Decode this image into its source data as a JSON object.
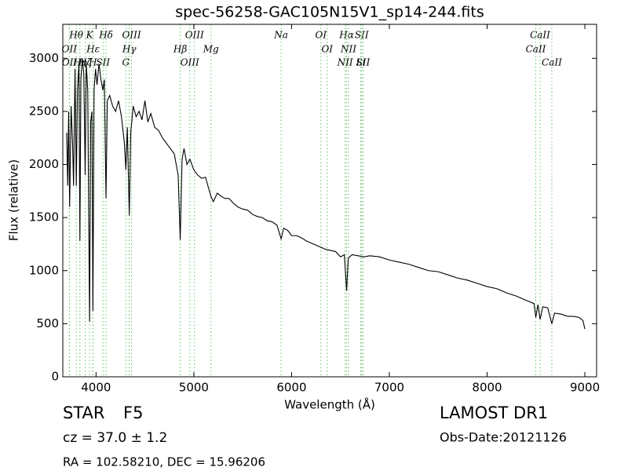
{
  "chart_data": {
    "type": "line",
    "title": "spec-56258-GAC105N15V1_sp14-244.fits",
    "x_label": "Wavelength (Å)",
    "y_label": "Flux (relative)",
    "xlim": [
      3660,
      9120
    ],
    "ylim": [
      0,
      3320
    ],
    "xticks": [
      4000,
      5000,
      6000,
      7000,
      8000,
      9000
    ],
    "yticks": [
      0,
      500,
      1000,
      1500,
      2000,
      2500,
      3000
    ],
    "grid": false,
    "x": [
      3700,
      3710,
      3720,
      3730,
      3745,
      3760,
      3770,
      3785,
      3798,
      3810,
      3825,
      3835,
      3845,
      3860,
      3875,
      3889,
      3900,
      3915,
      3925,
      3934,
      3945,
      3958,
      3968,
      3980,
      3995,
      4010,
      4030,
      4050,
      4070,
      4085,
      4102,
      4115,
      4140,
      4170,
      4200,
      4230,
      4260,
      4290,
      4305,
      4320,
      4340,
      4355,
      4380,
      4410,
      4440,
      4470,
      4500,
      4530,
      4560,
      4600,
      4640,
      4680,
      4720,
      4760,
      4800,
      4840,
      4861,
      4880,
      4900,
      4930,
      4960,
      5000,
      5040,
      5080,
      5120,
      5150,
      5175,
      5200,
      5240,
      5280,
      5320,
      5360,
      5400,
      5450,
      5500,
      5550,
      5600,
      5650,
      5700,
      5750,
      5800,
      5850,
      5893,
      5920,
      5960,
      6000,
      6050,
      6100,
      6150,
      6200,
      6250,
      6300,
      6350,
      6400,
      6450,
      6500,
      6540,
      6563,
      6580,
      6620,
      6680,
      6740,
      6800,
      6900,
      7000,
      7100,
      7200,
      7300,
      7400,
      7500,
      7600,
      7700,
      7800,
      7900,
      8000,
      8100,
      8200,
      8300,
      8400,
      8480,
      8498,
      8520,
      8542,
      8570,
      8620,
      8662,
      8690,
      8760,
      8820,
      8880,
      8940,
      8980,
      9000
    ],
    "series": [
      {
        "color": "#000000",
        "values": [
          2300,
          1800,
          2500,
          1600,
          2550,
          2200,
          1800,
          2900,
          1800,
          2700,
          2950,
          1280,
          2800,
          3000,
          2850,
          1900,
          2950,
          2700,
          1500,
          520,
          2400,
          2500,
          620,
          2700,
          2900,
          2750,
          2950,
          2800,
          2700,
          2800,
          1680,
          2600,
          2650,
          2550,
          2500,
          2600,
          2450,
          2200,
          1950,
          2350,
          1520,
          2300,
          2550,
          2450,
          2500,
          2420,
          2600,
          2400,
          2480,
          2350,
          2320,
          2250,
          2200,
          2150,
          2100,
          1900,
          1290,
          2050,
          2150,
          2000,
          2050,
          1950,
          1900,
          1870,
          1880,
          1780,
          1700,
          1650,
          1730,
          1700,
          1680,
          1680,
          1640,
          1600,
          1580,
          1570,
          1530,
          1510,
          1500,
          1470,
          1460,
          1430,
          1300,
          1400,
          1380,
          1330,
          1330,
          1310,
          1280,
          1260,
          1240,
          1220,
          1200,
          1190,
          1180,
          1130,
          1150,
          810,
          1120,
          1150,
          1140,
          1130,
          1140,
          1130,
          1100,
          1080,
          1060,
          1030,
          1000,
          990,
          960,
          930,
          910,
          880,
          850,
          830,
          790,
          760,
          720,
          690,
          560,
          680,
          540,
          660,
          650,
          500,
          600,
          590,
          570,
          570,
          560,
          530,
          450
        ]
      }
    ],
    "line_color": "#66c266",
    "spectral_lines": [
      {
        "label": "Hθ",
        "wavelength": 3798
      },
      {
        "label": "K",
        "wavelength": 3934
      },
      {
        "label": "Hδ",
        "wavelength": 4102
      },
      {
        "label": "OIII",
        "wavelength": 4363
      },
      {
        "label": "OIII",
        "wavelength": 5007
      },
      {
        "label": "OI",
        "wavelength": 6300
      },
      {
        "label": "Hα",
        "wavelength": 6563
      },
      {
        "label": "SII",
        "wavelength": 6717
      },
      {
        "label": "CaII",
        "wavelength": 8542
      },
      {
        "label": "OII",
        "wavelength": 3727
      },
      {
        "label": "Hη",
        "wavelength": 3835
      },
      {
        "label": "Hε",
        "wavelength": 3970
      },
      {
        "label": "SII",
        "wavelength": 4072
      },
      {
        "label": "Hγ",
        "wavelength": 4340
      },
      {
        "label": "Na",
        "wavelength": 5893
      },
      {
        "label": "NII",
        "wavelength": 6583
      },
      {
        "label": "Li",
        "wavelength": 6708
      },
      {
        "label": "CaII",
        "wavelength": 8498
      },
      {
        "label": "OII",
        "wavelength": 3729
      },
      {
        "label": "Hζ",
        "wavelength": 3889
      },
      {
        "label": "H",
        "wavelength": 3968
      },
      {
        "label": "G",
        "wavelength": 4305
      },
      {
        "label": "Hβ",
        "wavelength": 4861
      },
      {
        "label": "OIII",
        "wavelength": 4959
      },
      {
        "label": "Mg",
        "wavelength": 5175
      },
      {
        "label": "OI",
        "wavelength": 6364
      },
      {
        "label": "NII",
        "wavelength": 6548
      },
      {
        "label": "SII",
        "wavelength": 6731
      },
      {
        "label": "CaII",
        "wavelength": 8662
      }
    ],
    "info": {
      "class": "STAR",
      "subclass": "F5",
      "redshift": "cz = 37.0  ± 1.2",
      "coordinates": "RA = 102.58210, DEC = 15.96206",
      "survey": "LAMOST DR1",
      "obs_date": "Obs-Date:20121126"
    }
  }
}
